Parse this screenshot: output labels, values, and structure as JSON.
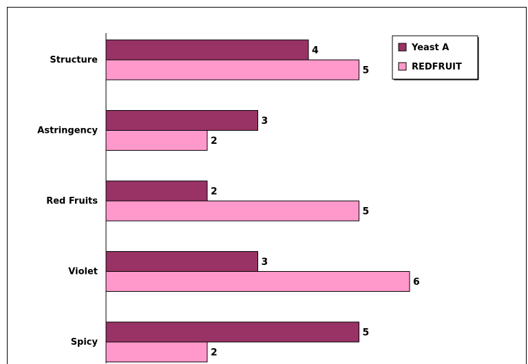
{
  "chart_data": {
    "type": "bar",
    "orientation": "horizontal",
    "categories": [
      "Structure",
      "Astringency",
      "Red Fruits",
      "Violet",
      "Spicy"
    ],
    "series": [
      {
        "name": "Yeast A",
        "values": [
          4,
          3,
          2,
          3,
          5
        ],
        "color": "#993366"
      },
      {
        "name": "REDFRUIT",
        "values": [
          5,
          2,
          5,
          6,
          2
        ],
        "color": "#FF99CC"
      }
    ],
    "xlim": [
      0,
      6
    ],
    "grid": false,
    "legend_position": "top-right",
    "data_labels": true
  }
}
